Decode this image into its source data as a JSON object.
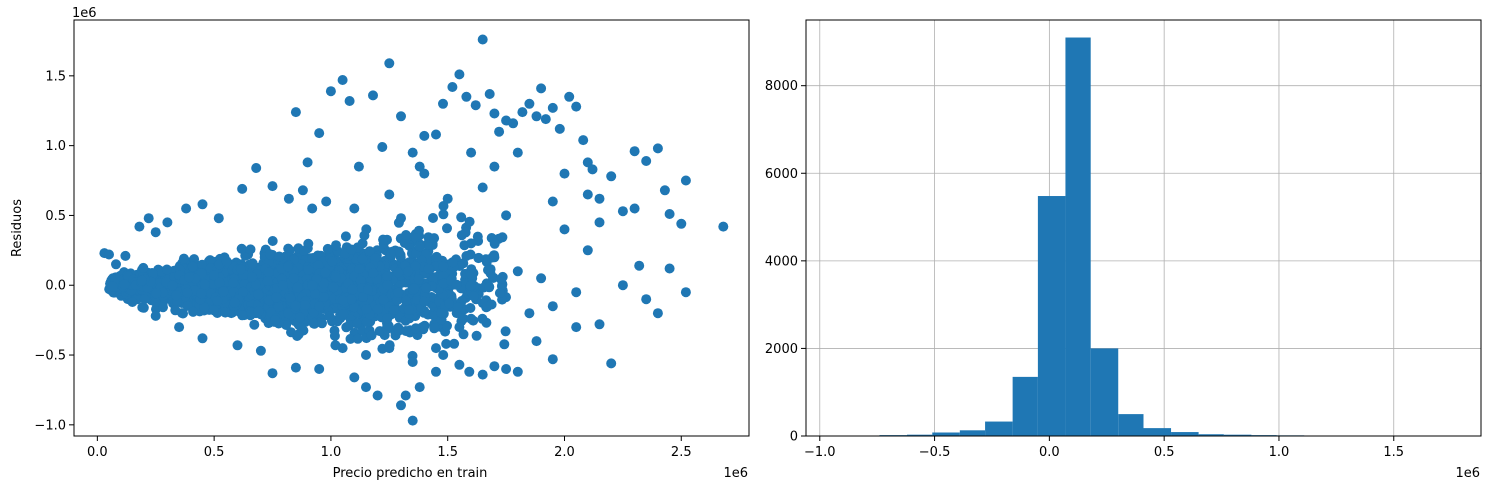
{
  "colors": {
    "series": "#1f77b4",
    "grid": "#b0b0b0",
    "axis": "#000000"
  },
  "chart_data": [
    {
      "type": "scatter",
      "title": "",
      "xlabel": "Precio predicho en train",
      "ylabel": "Residuos",
      "x_offset_label": "1e6",
      "y_offset_label": "1e6",
      "xlim": [
        -0.1,
        2.79
      ],
      "ylim": [
        -1.08,
        1.9
      ],
      "x_ticks": [
        0.0,
        0.5,
        1.0,
        1.5,
        2.0,
        2.5
      ],
      "x_tick_labels": [
        "0.0",
        "0.5",
        "1.0",
        "1.5",
        "2.0",
        "2.5"
      ],
      "y_ticks": [
        -1.0,
        -0.5,
        0.0,
        0.5,
        1.0,
        1.5
      ],
      "y_tick_labels": [
        "−1.0",
        "−0.5",
        "0.0",
        "0.5",
        "1.0",
        "1.5"
      ],
      "grid": false,
      "points": [
        [
          0.03,
          0.23
        ],
        [
          0.05,
          0.22
        ],
        [
          0.08,
          0.15
        ],
        [
          0.12,
          0.21
        ],
        [
          0.18,
          0.42
        ],
        [
          0.22,
          0.48
        ],
        [
          0.25,
          0.38
        ],
        [
          0.3,
          0.45
        ],
        [
          0.38,
          0.55
        ],
        [
          0.45,
          0.58
        ],
        [
          0.52,
          0.48
        ],
        [
          0.62,
          0.69
        ],
        [
          0.68,
          0.84
        ],
        [
          0.75,
          0.71
        ],
        [
          0.82,
          0.62
        ],
        [
          0.88,
          0.68
        ],
        [
          0.92,
          0.55
        ],
        [
          0.95,
          1.09
        ],
        [
          0.9,
          0.88
        ],
        [
          0.85,
          1.24
        ],
        [
          0.98,
          0.6
        ],
        [
          1.0,
          1.39
        ],
        [
          1.05,
          1.47
        ],
        [
          1.08,
          1.32
        ],
        [
          1.12,
          0.85
        ],
        [
          1.18,
          1.36
        ],
        [
          1.22,
          0.99
        ],
        [
          1.25,
          1.59
        ],
        [
          1.3,
          1.21
        ],
        [
          1.35,
          0.95
        ],
        [
          1.38,
          0.85
        ],
        [
          1.4,
          1.07
        ],
        [
          1.45,
          1.08
        ],
        [
          1.48,
          1.3
        ],
        [
          1.52,
          1.42
        ],
        [
          1.55,
          1.51
        ],
        [
          1.58,
          1.35
        ],
        [
          1.62,
          1.29
        ],
        [
          1.65,
          1.76
        ],
        [
          1.68,
          1.37
        ],
        [
          1.7,
          1.23
        ],
        [
          1.72,
          1.1
        ],
        [
          1.75,
          1.18
        ],
        [
          1.78,
          1.16
        ],
        [
          1.82,
          1.24
        ],
        [
          1.85,
          1.3
        ],
        [
          1.88,
          1.21
        ],
        [
          1.9,
          1.41
        ],
        [
          1.92,
          1.19
        ],
        [
          1.95,
          1.27
        ],
        [
          1.98,
          1.12
        ],
        [
          2.02,
          1.35
        ],
        [
          2.05,
          1.28
        ],
        [
          2.08,
          1.04
        ],
        [
          2.1,
          0.88
        ],
        [
          2.12,
          0.83
        ],
        [
          2.15,
          0.62
        ],
        [
          2.2,
          0.78
        ],
        [
          2.25,
          0.53
        ],
        [
          2.3,
          0.96
        ],
        [
          2.35,
          0.89
        ],
        [
          2.4,
          0.98
        ],
        [
          2.43,
          0.68
        ],
        [
          2.45,
          0.51
        ],
        [
          2.5,
          0.44
        ],
        [
          2.52,
          0.75
        ],
        [
          2.68,
          0.42
        ],
        [
          2.32,
          0.14
        ],
        [
          2.45,
          0.12
        ],
        [
          2.52,
          -0.05
        ],
        [
          2.2,
          -0.56
        ],
        [
          2.15,
          -0.28
        ],
        [
          2.05,
          -0.3
        ],
        [
          1.95,
          -0.53
        ],
        [
          1.88,
          -0.4
        ],
        [
          1.8,
          -0.62
        ],
        [
          1.75,
          -0.6
        ],
        [
          1.7,
          -0.58
        ],
        [
          1.65,
          -0.64
        ],
        [
          1.55,
          -0.57
        ],
        [
          1.45,
          -0.62
        ],
        [
          1.38,
          -0.73
        ],
        [
          1.32,
          -0.79
        ],
        [
          1.3,
          -0.86
        ],
        [
          1.35,
          -0.97
        ],
        [
          1.2,
          -0.79
        ],
        [
          1.15,
          -0.73
        ],
        [
          1.1,
          -0.66
        ],
        [
          0.95,
          -0.6
        ],
        [
          0.85,
          -0.59
        ],
        [
          0.75,
          -0.63
        ],
        [
          0.7,
          -0.47
        ],
        [
          0.6,
          -0.43
        ],
        [
          0.45,
          -0.38
        ],
        [
          0.35,
          -0.3
        ],
        [
          0.25,
          -0.22
        ],
        [
          0.15,
          -0.12
        ],
        [
          1.6,
          0.95
        ],
        [
          1.4,
          0.8
        ],
        [
          1.25,
          0.65
        ],
        [
          1.1,
          0.55
        ],
        [
          1.3,
          0.48
        ],
        [
          1.5,
          0.62
        ],
        [
          1.6,
          0.3
        ],
        [
          1.7,
          0.2
        ],
        [
          1.8,
          0.1
        ],
        [
          1.9,
          0.05
        ],
        [
          2.0,
          0.4
        ],
        [
          2.1,
          0.25
        ],
        [
          2.25,
          0.0
        ],
        [
          2.35,
          -0.1
        ],
        [
          2.4,
          -0.2
        ],
        [
          1.85,
          -0.2
        ],
        [
          1.95,
          -0.15
        ],
        [
          2.05,
          -0.05
        ],
        [
          1.75,
          0.5
        ],
        [
          1.65,
          0.7
        ],
        [
          1.95,
          0.6
        ],
        [
          2.15,
          0.45
        ],
        [
          2.3,
          0.55
        ],
        [
          1.55,
          -0.3
        ],
        [
          1.45,
          -0.45
        ],
        [
          1.35,
          -0.55
        ],
        [
          1.25,
          -0.45
        ],
        [
          1.15,
          -0.5
        ],
        [
          1.05,
          -0.45
        ],
        [
          2.0,
          0.8
        ],
        [
          1.8,
          0.95
        ],
        [
          1.7,
          0.85
        ],
        [
          2.1,
          0.65
        ]
      ],
      "cloud": [
        {
          "cx": 0.28,
          "cy": 0.0,
          "sx": 0.16,
          "sy": 0.1,
          "n": 900
        },
        {
          "cx": 0.6,
          "cy": 0.0,
          "sx": 0.2,
          "sy": 0.16,
          "n": 1000
        },
        {
          "cx": 1.0,
          "cy": -0.02,
          "sx": 0.22,
          "sy": 0.2,
          "n": 800
        },
        {
          "cx": 1.4,
          "cy": 0.0,
          "sx": 0.22,
          "sy": 0.22,
          "n": 350
        }
      ]
    },
    {
      "type": "bar",
      "title": "",
      "xlabel": "",
      "ylabel": "",
      "x_offset_label": "1e6",
      "xlim": [
        -1.06,
        1.88
      ],
      "ylim": [
        0,
        9500
      ],
      "x_ticks": [
        -1.0,
        -0.5,
        0.0,
        0.5,
        1.0,
        1.5
      ],
      "x_tick_labels": [
        "−1.0",
        "−0.5",
        "0.0",
        "0.5",
        "1.0",
        "1.5"
      ],
      "y_ticks": [
        0,
        2000,
        4000,
        6000,
        8000
      ],
      "y_tick_labels": [
        "0",
        "2000",
        "4000",
        "6000",
        "8000"
      ],
      "grid": true,
      "bin_edges": [
        -0.97,
        -0.85,
        -0.74,
        -0.62,
        -0.51,
        -0.39,
        -0.28,
        -0.16,
        -0.05,
        0.07,
        0.18,
        0.3,
        0.41,
        0.53,
        0.65,
        0.76,
        0.88,
        0.99,
        1.11,
        1.22,
        1.34,
        1.45,
        1.57,
        1.68,
        1.8
      ],
      "values": [
        0,
        10,
        20,
        30,
        80,
        130,
        330,
        1350,
        5480,
        9100,
        2000,
        500,
        180,
        90,
        40,
        30,
        20,
        15,
        10,
        8,
        5,
        3,
        2,
        2
      ]
    }
  ]
}
